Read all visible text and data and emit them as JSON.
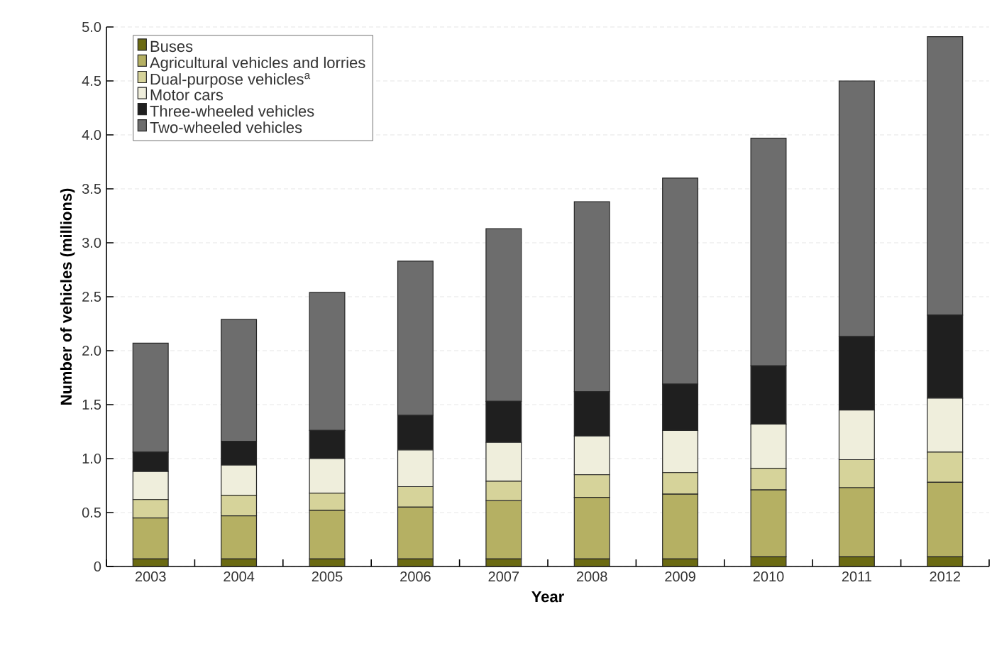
{
  "chart_data": {
    "type": "bar",
    "stacked": true,
    "xlabel": "Year",
    "ylabel": "Number of vehicles (millions)",
    "categories": [
      "2003",
      "2004",
      "2005",
      "2006",
      "2007",
      "2008",
      "2009",
      "2010",
      "2011",
      "2012"
    ],
    "series": [
      {
        "name": "Buses",
        "color": "#6b6a12",
        "values": [
          0.07,
          0.07,
          0.07,
          0.07,
          0.07,
          0.07,
          0.07,
          0.09,
          0.09,
          0.09
        ]
      },
      {
        "name": "Agricultural vehicles and lorries",
        "color": "#b5b063",
        "values": [
          0.38,
          0.4,
          0.45,
          0.48,
          0.54,
          0.57,
          0.6,
          0.62,
          0.64,
          0.69
        ]
      },
      {
        "name": "Dual-purpose vehicles$^{a}$",
        "color": "#d6d39a",
        "values": [
          0.17,
          0.19,
          0.16,
          0.19,
          0.18,
          0.21,
          0.2,
          0.2,
          0.26,
          0.28
        ]
      },
      {
        "name": "Motor cars",
        "color": "#efeedc",
        "values": [
          0.26,
          0.28,
          0.32,
          0.34,
          0.36,
          0.36,
          0.39,
          0.41,
          0.46,
          0.5
        ]
      },
      {
        "name": "Three-wheeled vehicles",
        "color": "#1f1f1f",
        "values": [
          0.18,
          0.22,
          0.26,
          0.32,
          0.38,
          0.41,
          0.43,
          0.54,
          0.68,
          0.77
        ]
      },
      {
        "name": "Two-wheeled vehicles",
        "color": "#6d6d6d",
        "values": [
          1.01,
          1.13,
          1.28,
          1.43,
          1.6,
          1.76,
          1.91,
          2.11,
          2.37,
          2.58
        ]
      }
    ],
    "ylim": [
      0,
      5
    ],
    "yticks": [
      0,
      0.5,
      {
        "value": 1,
        "label": "1.0"
      },
      1.5,
      {
        "value": 2,
        "label": "2.0"
      },
      2.5,
      {
        "value": 3,
        "label": "3.0"
      },
      3.5,
      {
        "value": 4,
        "label": "4.0"
      },
      4.5,
      {
        "value": 5,
        "label": "5.0"
      }
    ],
    "grid": "y",
    "legend": "top left"
  }
}
